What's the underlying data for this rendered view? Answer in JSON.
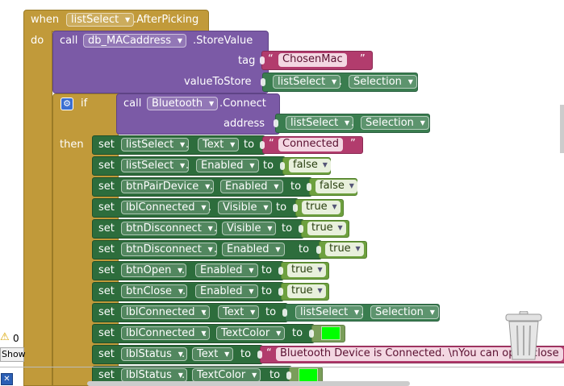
{
  "event": {
    "when": "when",
    "component": "listSelect",
    "event_name": ".AfterPicking",
    "do": "do"
  },
  "store": {
    "call": "call",
    "component": "db_MACaddress",
    "method": ".StoreValue",
    "tag_label": "tag",
    "tag_value": "ChosenMac",
    "vts_label": "valueToStore",
    "vts_comp": "listSelect",
    "vts_prop": "Selection"
  },
  "ifblock": {
    "if": "if",
    "call": "call",
    "component": "Bluetooth",
    "method": ".Connect",
    "addr_label": "address",
    "addr_comp": "listSelect",
    "addr_prop": "Selection",
    "then": "then"
  },
  "kw": {
    "set": "set",
    "to": "to",
    "dot": "."
  },
  "rows": [
    {
      "comp": "listSelect",
      "prop": "Text",
      "vtype": "str",
      "value": "Connected"
    },
    {
      "comp": "listSelect",
      "prop": "Enabled",
      "vtype": "bool",
      "value": "false"
    },
    {
      "comp": "btnPairDevice",
      "prop": "Enabled",
      "vtype": "bool",
      "value": "false"
    },
    {
      "comp": "lblConnected",
      "prop": "Visible",
      "vtype": "bool",
      "value": "true"
    },
    {
      "comp": "btnDisconnect",
      "prop": "Visible",
      "vtype": "bool",
      "value": "true"
    },
    {
      "comp": "btnDisconnect",
      "prop": "Enabled",
      "vtype": "bool",
      "value": "true"
    },
    {
      "comp": "btnOpen",
      "prop": "Enabled",
      "vtype": "bool",
      "value": "true"
    },
    {
      "comp": "btnClose",
      "prop": "Enabled",
      "vtype": "bool",
      "value": "true"
    },
    {
      "comp": "lblConnected",
      "prop": "Text",
      "vtype": "comp",
      "value": "listSelect",
      "value2": "Selection"
    },
    {
      "comp": "lblConnected",
      "prop": "TextColor",
      "vtype": "color",
      "value": "#00ff00"
    },
    {
      "comp": "lblStatus",
      "prop": "Text",
      "vtype": "str",
      "value": "Bluetooth Device is Connected. \\nYou can open/close"
    },
    {
      "comp": "lblStatus",
      "prop": "TextColor",
      "vtype": "color",
      "value": "#00ff00"
    }
  ],
  "side": {
    "warning_count": "0",
    "show_label": "Show",
    "close_glyph": "✕"
  },
  "colors": {
    "event": "#c19a3a",
    "procedure": "#7b5aa6",
    "setter": "#2d6d3c",
    "text": "#b23c6d",
    "logic": "#6ea03f",
    "color_green": "#00ff00"
  }
}
